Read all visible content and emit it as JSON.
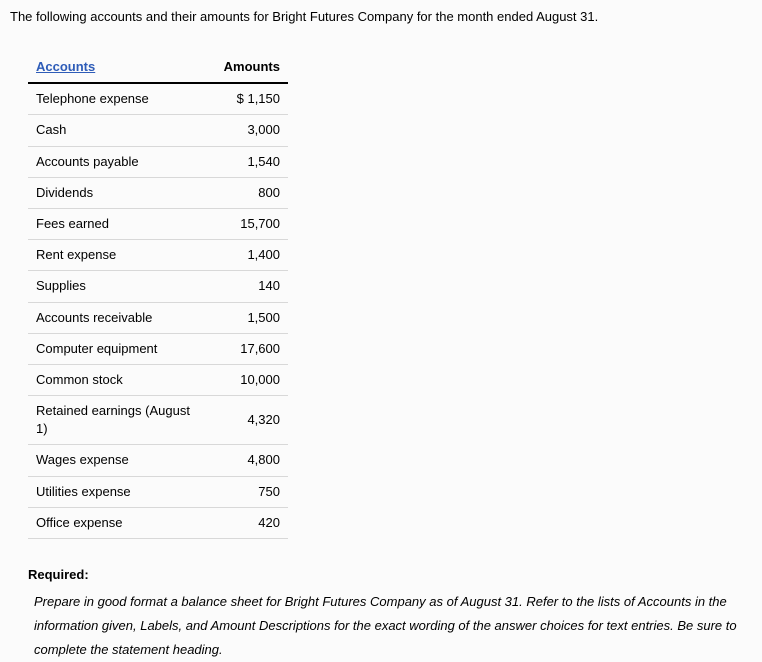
{
  "intro": "The following accounts and their amounts for Bright Futures Company for the month ended August 31.",
  "table": {
    "headers": {
      "accounts": "Accounts",
      "amounts": "Amounts"
    },
    "rows": [
      {
        "account": "Telephone expense",
        "amount": "$ 1,150"
      },
      {
        "account": "Cash",
        "amount": "3,000"
      },
      {
        "account": "Accounts payable",
        "amount": "1,540"
      },
      {
        "account": "Dividends",
        "amount": "800"
      },
      {
        "account": "Fees earned",
        "amount": "15,700"
      },
      {
        "account": "Rent expense",
        "amount": "1,400"
      },
      {
        "account": "Supplies",
        "amount": "140"
      },
      {
        "account": "Accounts receivable",
        "amount": "1,500"
      },
      {
        "account": "Computer equipment",
        "amount": "17,600"
      },
      {
        "account": "Common stock",
        "amount": "10,000"
      },
      {
        "account": "Retained earnings (August 1)",
        "amount": "4,320"
      },
      {
        "account": "Wages expense",
        "amount": "4,800"
      },
      {
        "account": "Utilities expense",
        "amount": "750"
      },
      {
        "account": "Office expense",
        "amount": "420"
      }
    ]
  },
  "required": {
    "label": "Required:",
    "text": "Prepare in good format a balance sheet for Bright Futures Company as of August 31. Refer to the lists of Accounts in the information given, Labels, and Amount Descriptions for the exact wording of the answer choices for text entries. Be sure to complete the statement heading."
  },
  "styling": {
    "background_color": "#fbfbfb",
    "text_color": "#000000",
    "link_color": "#2e5cb8",
    "border_dark": "#000000",
    "border_light": "#d8d8d8",
    "font_size_base": 13,
    "font_family": "Arial, Helvetica, sans-serif"
  }
}
